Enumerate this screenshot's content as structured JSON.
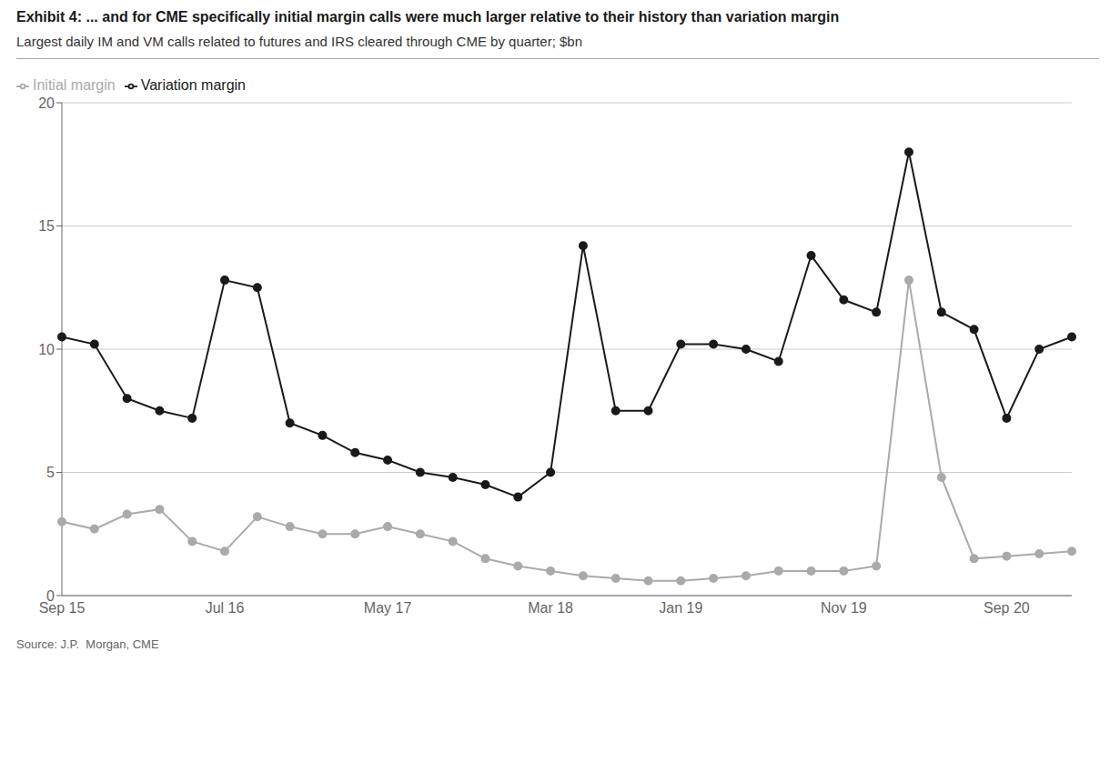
{
  "chart_data": {
    "type": "line",
    "title": "Exhibit 4: ... and for CME specifically initial margin calls were much larger relative to their history than variation margin",
    "subtitle": "Largest daily IM and VM calls related to futures and IRS cleared through CME by quarter; $bn",
    "source": "Source: J.P.  Morgan, CME",
    "categories": [
      "Sep 15",
      null,
      null,
      null,
      null,
      "Jul 16",
      null,
      null,
      null,
      null,
      "May 17",
      null,
      null,
      null,
      null,
      "Mar 18",
      null,
      null,
      null,
      "Jan 19",
      null,
      null,
      null,
      null,
      "Nov 19",
      null,
      null,
      null,
      null,
      "Sep 20",
      null,
      null
    ],
    "series": [
      {
        "name": "Variation margin",
        "color": "#1a1a1a",
        "marker": "circle",
        "values": [
          10.5,
          10.2,
          8.0,
          7.5,
          7.2,
          12.8,
          12.5,
          7.0,
          6.5,
          5.8,
          5.5,
          5.0,
          4.8,
          4.5,
          4.0,
          5.0,
          14.2,
          7.5,
          7.5,
          10.2,
          10.2,
          10.0,
          9.5,
          13.8,
          12.0,
          11.5,
          18.0,
          11.5,
          10.8,
          7.2,
          10.0,
          10.5
        ]
      },
      {
        "name": "Initial margin",
        "color": "#aaaaaa",
        "marker": "circle",
        "values": [
          3.0,
          2.7,
          3.3,
          3.5,
          2.2,
          1.8,
          3.2,
          2.8,
          2.5,
          2.5,
          2.8,
          2.5,
          2.2,
          1.5,
          1.2,
          1.0,
          0.8,
          0.7,
          0.6,
          0.6,
          0.7,
          0.8,
          1.0,
          1.0,
          1.0,
          1.2,
          12.8,
          4.8,
          1.5,
          1.6,
          1.7,
          1.8
        ]
      }
    ],
    "ylim": [
      0,
      20
    ],
    "yticks": [
      0,
      5,
      10,
      15,
      20
    ],
    "grid": true,
    "legend": "upper left"
  }
}
